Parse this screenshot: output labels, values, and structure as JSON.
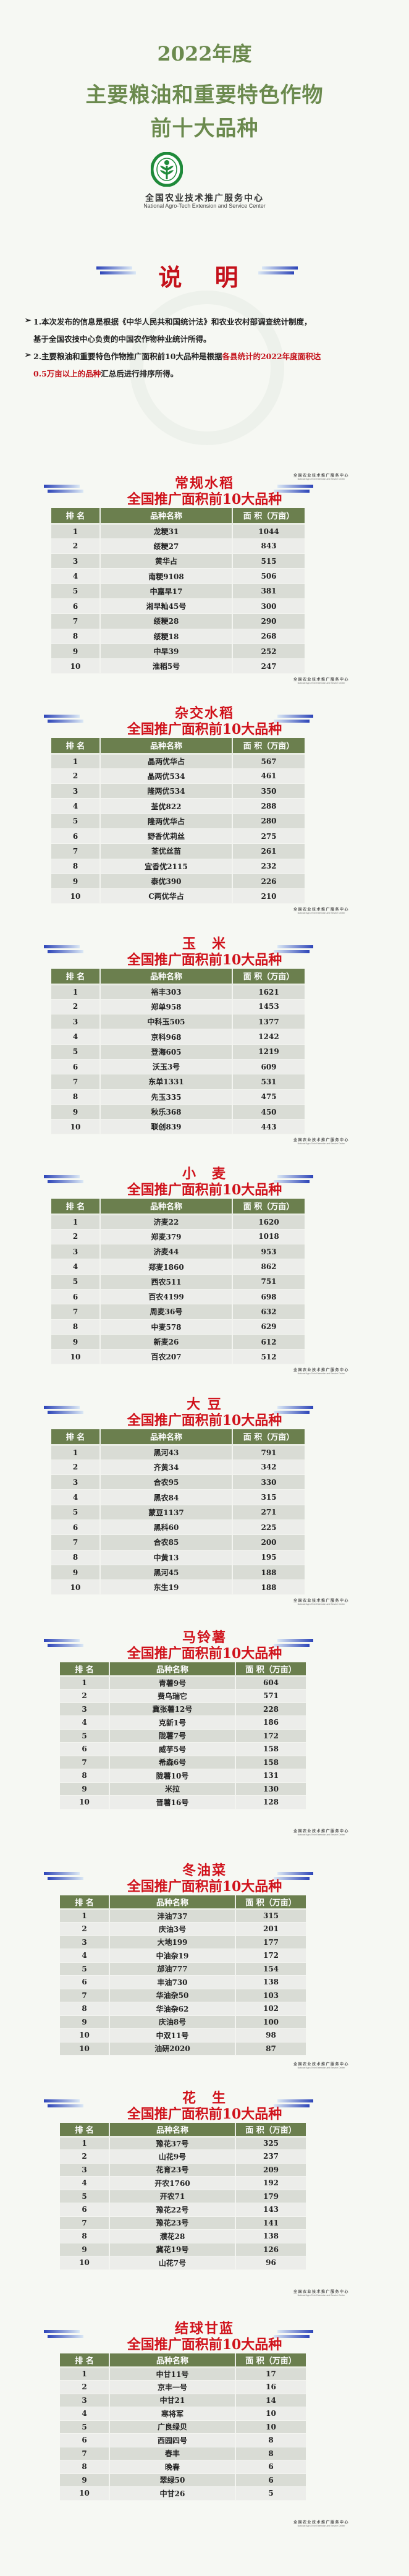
{
  "cover": {
    "line1": "2022年度",
    "line2": "主要粮油和重要特色作物",
    "line3": "前十大品种",
    "org_cn": "全国农业技术推广服务中心",
    "org_en": "National Agro-Tech Extension and Service Center",
    "logo_icon": "natesc-wheat-logo"
  },
  "notes": {
    "title": "说 明",
    "item1_line1": "1.本次发布的信息是根据《中华人民共和国统计法》和农业农村部调查统计制度，",
    "item1_line2": "基于全国农技中心负责的中国农作物种业统计所得。",
    "item2_line1_a": "2.主要粮油和重要特色作物推广面积前10大品种是根据",
    "item2_line1_b": "各县统计的2022年度面积达",
    "item2_line2_a": "0.5万亩以上的品种",
    "item2_line2_b": "汇总后进行排序所得。"
  },
  "table_headers": {
    "rank": "排 名",
    "name": "品种名称",
    "area": "面 积（万亩）"
  },
  "subtitle": "全国推广面积前10大品种",
  "colors": {
    "title_green": "#6b8a4e",
    "header_green": "#6b7f4e",
    "accent_red": "#d0121b",
    "bar_blue": "#2d45b8"
  },
  "sections": [
    {
      "crop": "常规水稻",
      "rows": [
        {
          "rank": "1",
          "name": "龙粳31",
          "area": "1044"
        },
        {
          "rank": "2",
          "name": "绥粳27",
          "area": "843"
        },
        {
          "rank": "3",
          "name": "黄华占",
          "area": "515"
        },
        {
          "rank": "4",
          "name": "南粳9108",
          "area": "506"
        },
        {
          "rank": "5",
          "name": "中嘉早17",
          "area": "381"
        },
        {
          "rank": "6",
          "name": "湘早籼45号",
          "area": "300"
        },
        {
          "rank": "7",
          "name": "绥粳28",
          "area": "290"
        },
        {
          "rank": "8",
          "name": "绥粳18",
          "area": "268"
        },
        {
          "rank": "9",
          "name": "中早39",
          "area": "252"
        },
        {
          "rank": "10",
          "name": "淮稻5号",
          "area": "247"
        }
      ]
    },
    {
      "crop": "杂交水稻",
      "rows": [
        {
          "rank": "1",
          "name": "晶两优华占",
          "area": "567"
        },
        {
          "rank": "2",
          "name": "晶两优534",
          "area": "461"
        },
        {
          "rank": "3",
          "name": "隆两优534",
          "area": "350"
        },
        {
          "rank": "4",
          "name": "荃优822",
          "area": "288"
        },
        {
          "rank": "5",
          "name": "隆两优华占",
          "area": "280"
        },
        {
          "rank": "6",
          "name": "野香优莉丝",
          "area": "275"
        },
        {
          "rank": "7",
          "name": "荃优丝苗",
          "area": "261"
        },
        {
          "rank": "8",
          "name": "宜香优2115",
          "area": "232"
        },
        {
          "rank": "9",
          "name": "泰优390",
          "area": "226"
        },
        {
          "rank": "10",
          "name": "C两优华占",
          "area": "210"
        }
      ]
    },
    {
      "crop": "玉　米",
      "rows": [
        {
          "rank": "1",
          "name": "裕丰303",
          "area": "1621"
        },
        {
          "rank": "2",
          "name": "郑单958",
          "area": "1453"
        },
        {
          "rank": "3",
          "name": "中科玉505",
          "area": "1377"
        },
        {
          "rank": "4",
          "name": "京科968",
          "area": "1242"
        },
        {
          "rank": "5",
          "name": "登海605",
          "area": "1219"
        },
        {
          "rank": "6",
          "name": "沃玉3号",
          "area": "609"
        },
        {
          "rank": "7",
          "name": "东单1331",
          "area": "531"
        },
        {
          "rank": "8",
          "name": "先玉335",
          "area": "475"
        },
        {
          "rank": "9",
          "name": "秋乐368",
          "area": "450"
        },
        {
          "rank": "10",
          "name": "联创839",
          "area": "443"
        }
      ]
    },
    {
      "crop": "小　麦",
      "rows": [
        {
          "rank": "1",
          "name": "济麦22",
          "area": "1620"
        },
        {
          "rank": "2",
          "name": "郑麦379",
          "area": "1018"
        },
        {
          "rank": "3",
          "name": "济麦44",
          "area": "953"
        },
        {
          "rank": "4",
          "name": "郑麦1860",
          "area": "862"
        },
        {
          "rank": "5",
          "name": "西农511",
          "area": "751"
        },
        {
          "rank": "6",
          "name": "百农4199",
          "area": "698"
        },
        {
          "rank": "7",
          "name": "周麦36号",
          "area": "632"
        },
        {
          "rank": "8",
          "name": "中麦578",
          "area": "629"
        },
        {
          "rank": "9",
          "name": "新麦26",
          "area": "612"
        },
        {
          "rank": "10",
          "name": "百农207",
          "area": "512"
        }
      ]
    },
    {
      "crop": "大 豆",
      "rows": [
        {
          "rank": "1",
          "name": "黑河43",
          "area": "791"
        },
        {
          "rank": "2",
          "name": "齐黄34",
          "area": "342"
        },
        {
          "rank": "3",
          "name": "合农95",
          "area": "330"
        },
        {
          "rank": "4",
          "name": "黑农84",
          "area": "315"
        },
        {
          "rank": "5",
          "name": "蒙豆1137",
          "area": "271"
        },
        {
          "rank": "6",
          "name": "黑科60",
          "area": "225"
        },
        {
          "rank": "7",
          "name": "合农85",
          "area": "200"
        },
        {
          "rank": "8",
          "name": "中黄13",
          "area": "195"
        },
        {
          "rank": "9",
          "name": "黑河45",
          "area": "188"
        },
        {
          "rank": "10",
          "name": "东生19",
          "area": "188"
        }
      ]
    },
    {
      "crop": "马铃薯",
      "rows": [
        {
          "rank": "1",
          "name": "青薯9号",
          "area": "604"
        },
        {
          "rank": "2",
          "name": "费乌瑞它",
          "area": "571"
        },
        {
          "rank": "3",
          "name": "冀张薯12号",
          "area": "228"
        },
        {
          "rank": "4",
          "name": "克新1号",
          "area": "186"
        },
        {
          "rank": "5",
          "name": "陇薯7号",
          "area": "172"
        },
        {
          "rank": "6",
          "name": "威芋5号",
          "area": "158"
        },
        {
          "rank": "7",
          "name": "希森6号",
          "area": "158"
        },
        {
          "rank": "8",
          "name": "陇薯10号",
          "area": "131"
        },
        {
          "rank": "9",
          "name": "米拉",
          "area": "130"
        },
        {
          "rank": "10",
          "name": "晋薯16号",
          "area": "128"
        }
      ]
    },
    {
      "crop": "冬油菜",
      "rows": [
        {
          "rank": "1",
          "name": "沣油737",
          "area": "315"
        },
        {
          "rank": "2",
          "name": "庆油3号",
          "area": "201"
        },
        {
          "rank": "3",
          "name": "大地199",
          "area": "177"
        },
        {
          "rank": "4",
          "name": "中油杂19",
          "area": "172"
        },
        {
          "rank": "5",
          "name": "邡油777",
          "area": "154"
        },
        {
          "rank": "6",
          "name": "丰油730",
          "area": "138"
        },
        {
          "rank": "7",
          "name": "华油杂50",
          "area": "103"
        },
        {
          "rank": "8",
          "name": "华油杂62",
          "area": "102"
        },
        {
          "rank": "9",
          "name": "庆油8号",
          "area": "100"
        },
        {
          "rank": "10",
          "name": "中双11号",
          "area": "98"
        },
        {
          "rank": "10",
          "name": "油研2020",
          "area": "87"
        }
      ]
    },
    {
      "crop": "花　生",
      "rows": [
        {
          "rank": "1",
          "name": "豫花37号",
          "area": "325"
        },
        {
          "rank": "2",
          "name": "山花9号",
          "area": "237"
        },
        {
          "rank": "3",
          "name": "花育23号",
          "area": "209"
        },
        {
          "rank": "4",
          "name": "开农1760",
          "area": "192"
        },
        {
          "rank": "5",
          "name": "开农71",
          "area": "179"
        },
        {
          "rank": "6",
          "name": "豫花22号",
          "area": "143"
        },
        {
          "rank": "7",
          "name": "豫花23号",
          "area": "141"
        },
        {
          "rank": "8",
          "name": "濮花28",
          "area": "138"
        },
        {
          "rank": "9",
          "name": "冀花19号",
          "area": "126"
        },
        {
          "rank": "10",
          "name": "山花7号",
          "area": "96"
        }
      ]
    },
    {
      "crop": "结球甘蓝",
      "rows": [
        {
          "rank": "1",
          "name": "中甘11号",
          "area": "17"
        },
        {
          "rank": "2",
          "name": "京丰一号",
          "area": "16"
        },
        {
          "rank": "3",
          "name": "中甘21",
          "area": "14"
        },
        {
          "rank": "4",
          "name": "寒将军",
          "area": "10"
        },
        {
          "rank": "5",
          "name": "广良绿贝",
          "area": "10"
        },
        {
          "rank": "6",
          "name": "西园四号",
          "area": "8"
        },
        {
          "rank": "7",
          "name": "春丰",
          "area": "8"
        },
        {
          "rank": "8",
          "name": "晚春",
          "area": "6"
        },
        {
          "rank": "9",
          "name": "翠绿50",
          "area": "6"
        },
        {
          "rank": "10",
          "name": "中甘26",
          "area": "5"
        }
      ]
    }
  ]
}
